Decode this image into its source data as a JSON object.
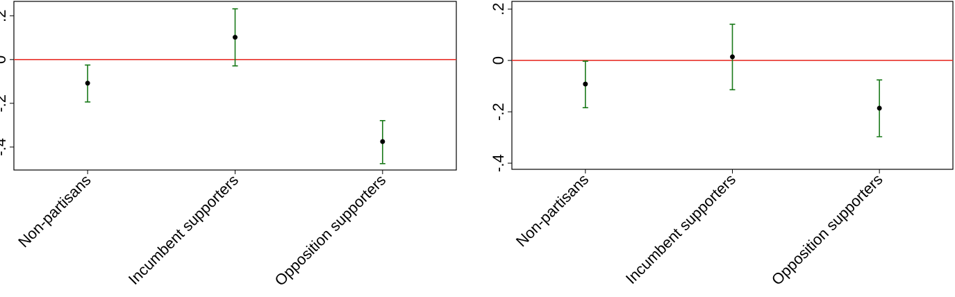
{
  "chart_data": [
    {
      "type": "errorbar",
      "categories": [
        "Non-partisans",
        "Incumbent supporters",
        "Opposition supporters"
      ],
      "values": [
        -0.108,
        0.102,
        -0.375
      ],
      "lower": [
        -0.194,
        -0.029,
        -0.476
      ],
      "upper": [
        -0.025,
        0.232,
        -0.279
      ],
      "color": "#1a7a1a",
      "point_color": "#000000",
      "hline": 0,
      "hline_color": "#e8312a",
      "ylim": [
        -0.505,
        0.266
      ],
      "yticks": [
        {
          "value": 0.2,
          "label": ".2"
        },
        0,
        {
          "value": -0.2,
          "label": "-.2"
        },
        {
          "value": -0.4,
          "label": "-.4"
        }
      ]
    },
    {
      "type": "errorbar",
      "categories": [
        "Non-partisans",
        "Incumbent supporters",
        "Opposition supporters"
      ],
      "values": [
        -0.092,
        0.014,
        -0.186
      ],
      "lower": [
        -0.184,
        -0.114,
        -0.297
      ],
      "upper": [
        -0.003,
        0.141,
        -0.076
      ],
      "color": "#1a7a1a",
      "point_color": "#000000",
      "hline": 0,
      "hline_color": "#e8312a",
      "ylim": [
        -0.424,
        0.23
      ],
      "yticks": [
        {
          "value": 0.2,
          "label": ".2"
        },
        0,
        {
          "value": -0.2,
          "label": "-.2"
        },
        {
          "value": -0.4,
          "label": "-.4"
        }
      ]
    }
  ]
}
